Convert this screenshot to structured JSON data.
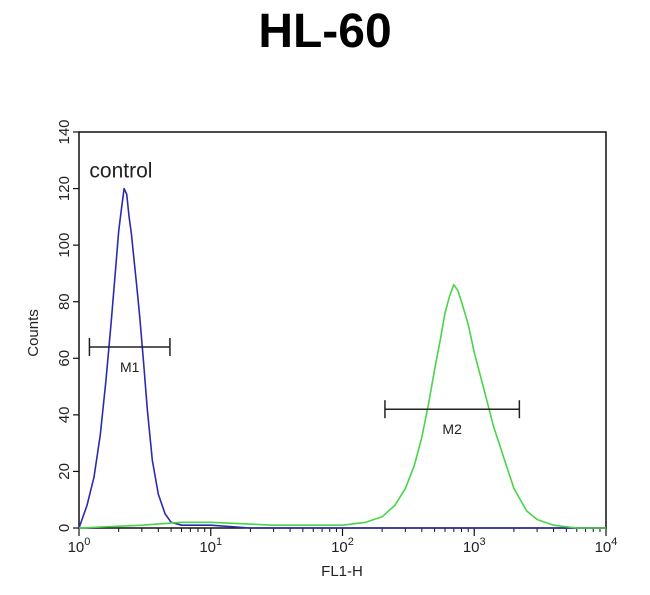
{
  "chart_data": {
    "type": "line",
    "title": "HL-60",
    "xlabel": "FL1-H",
    "ylabel": "Counts",
    "xscale": "log",
    "xlim": [
      1,
      10000
    ],
    "ylim": [
      0,
      140
    ],
    "x_ticks": [
      {
        "value": 1,
        "base": "10",
        "exp": "0"
      },
      {
        "value": 10,
        "base": "10",
        "exp": "1"
      },
      {
        "value": 100,
        "base": "10",
        "exp": "2"
      },
      {
        "value": 1000,
        "base": "10",
        "exp": "3"
      },
      {
        "value": 10000,
        "base": "10",
        "exp": "4"
      }
    ],
    "y_ticks": [
      0,
      20,
      40,
      60,
      80,
      100,
      120,
      140
    ],
    "series": [
      {
        "name": "control",
        "color": "#2b2bb0",
        "x": [
          1.0,
          1.15,
          1.3,
          1.45,
          1.6,
          1.75,
          1.9,
          2.0,
          2.1,
          2.2,
          2.3,
          2.4,
          2.5,
          2.6,
          2.75,
          2.9,
          3.1,
          3.3,
          3.6,
          4.0,
          4.5,
          5.0,
          6.0,
          8.0,
          10,
          20,
          40,
          100,
          300,
          1000,
          3000,
          10000
        ],
        "y": [
          0,
          8,
          18,
          33,
          52,
          72,
          92,
          105,
          113,
          120,
          118,
          110,
          104,
          96,
          85,
          74,
          58,
          42,
          24,
          12,
          5,
          2,
          1,
          1,
          1,
          0,
          0,
          0,
          0,
          0,
          0,
          0
        ]
      },
      {
        "name": "",
        "color": "#49d449",
        "x": [
          1,
          3,
          6,
          10,
          30,
          60,
          100,
          150,
          200,
          250,
          300,
          350,
          400,
          450,
          500,
          550,
          600,
          650,
          700,
          750,
          800,
          900,
          1000,
          1200,
          1400,
          1700,
          2000,
          2500,
          3000,
          4000,
          6000,
          10000
        ],
        "y": [
          0,
          1,
          2,
          2,
          1,
          1,
          1,
          2,
          4,
          8,
          14,
          22,
          32,
          44,
          56,
          66,
          76,
          82,
          86,
          84,
          80,
          72,
          62,
          48,
          36,
          24,
          14,
          6,
          3,
          1,
          0,
          0
        ]
      }
    ],
    "markers": [
      {
        "label": "M1",
        "x1": 1.2,
        "x2": 4.9,
        "y": 64
      },
      {
        "label": "M2",
        "x1": 210,
        "x2": 2200,
        "y": 42
      }
    ],
    "annotations": [
      {
        "text": "control",
        "x": 1.2,
        "y": 124
      }
    ]
  }
}
